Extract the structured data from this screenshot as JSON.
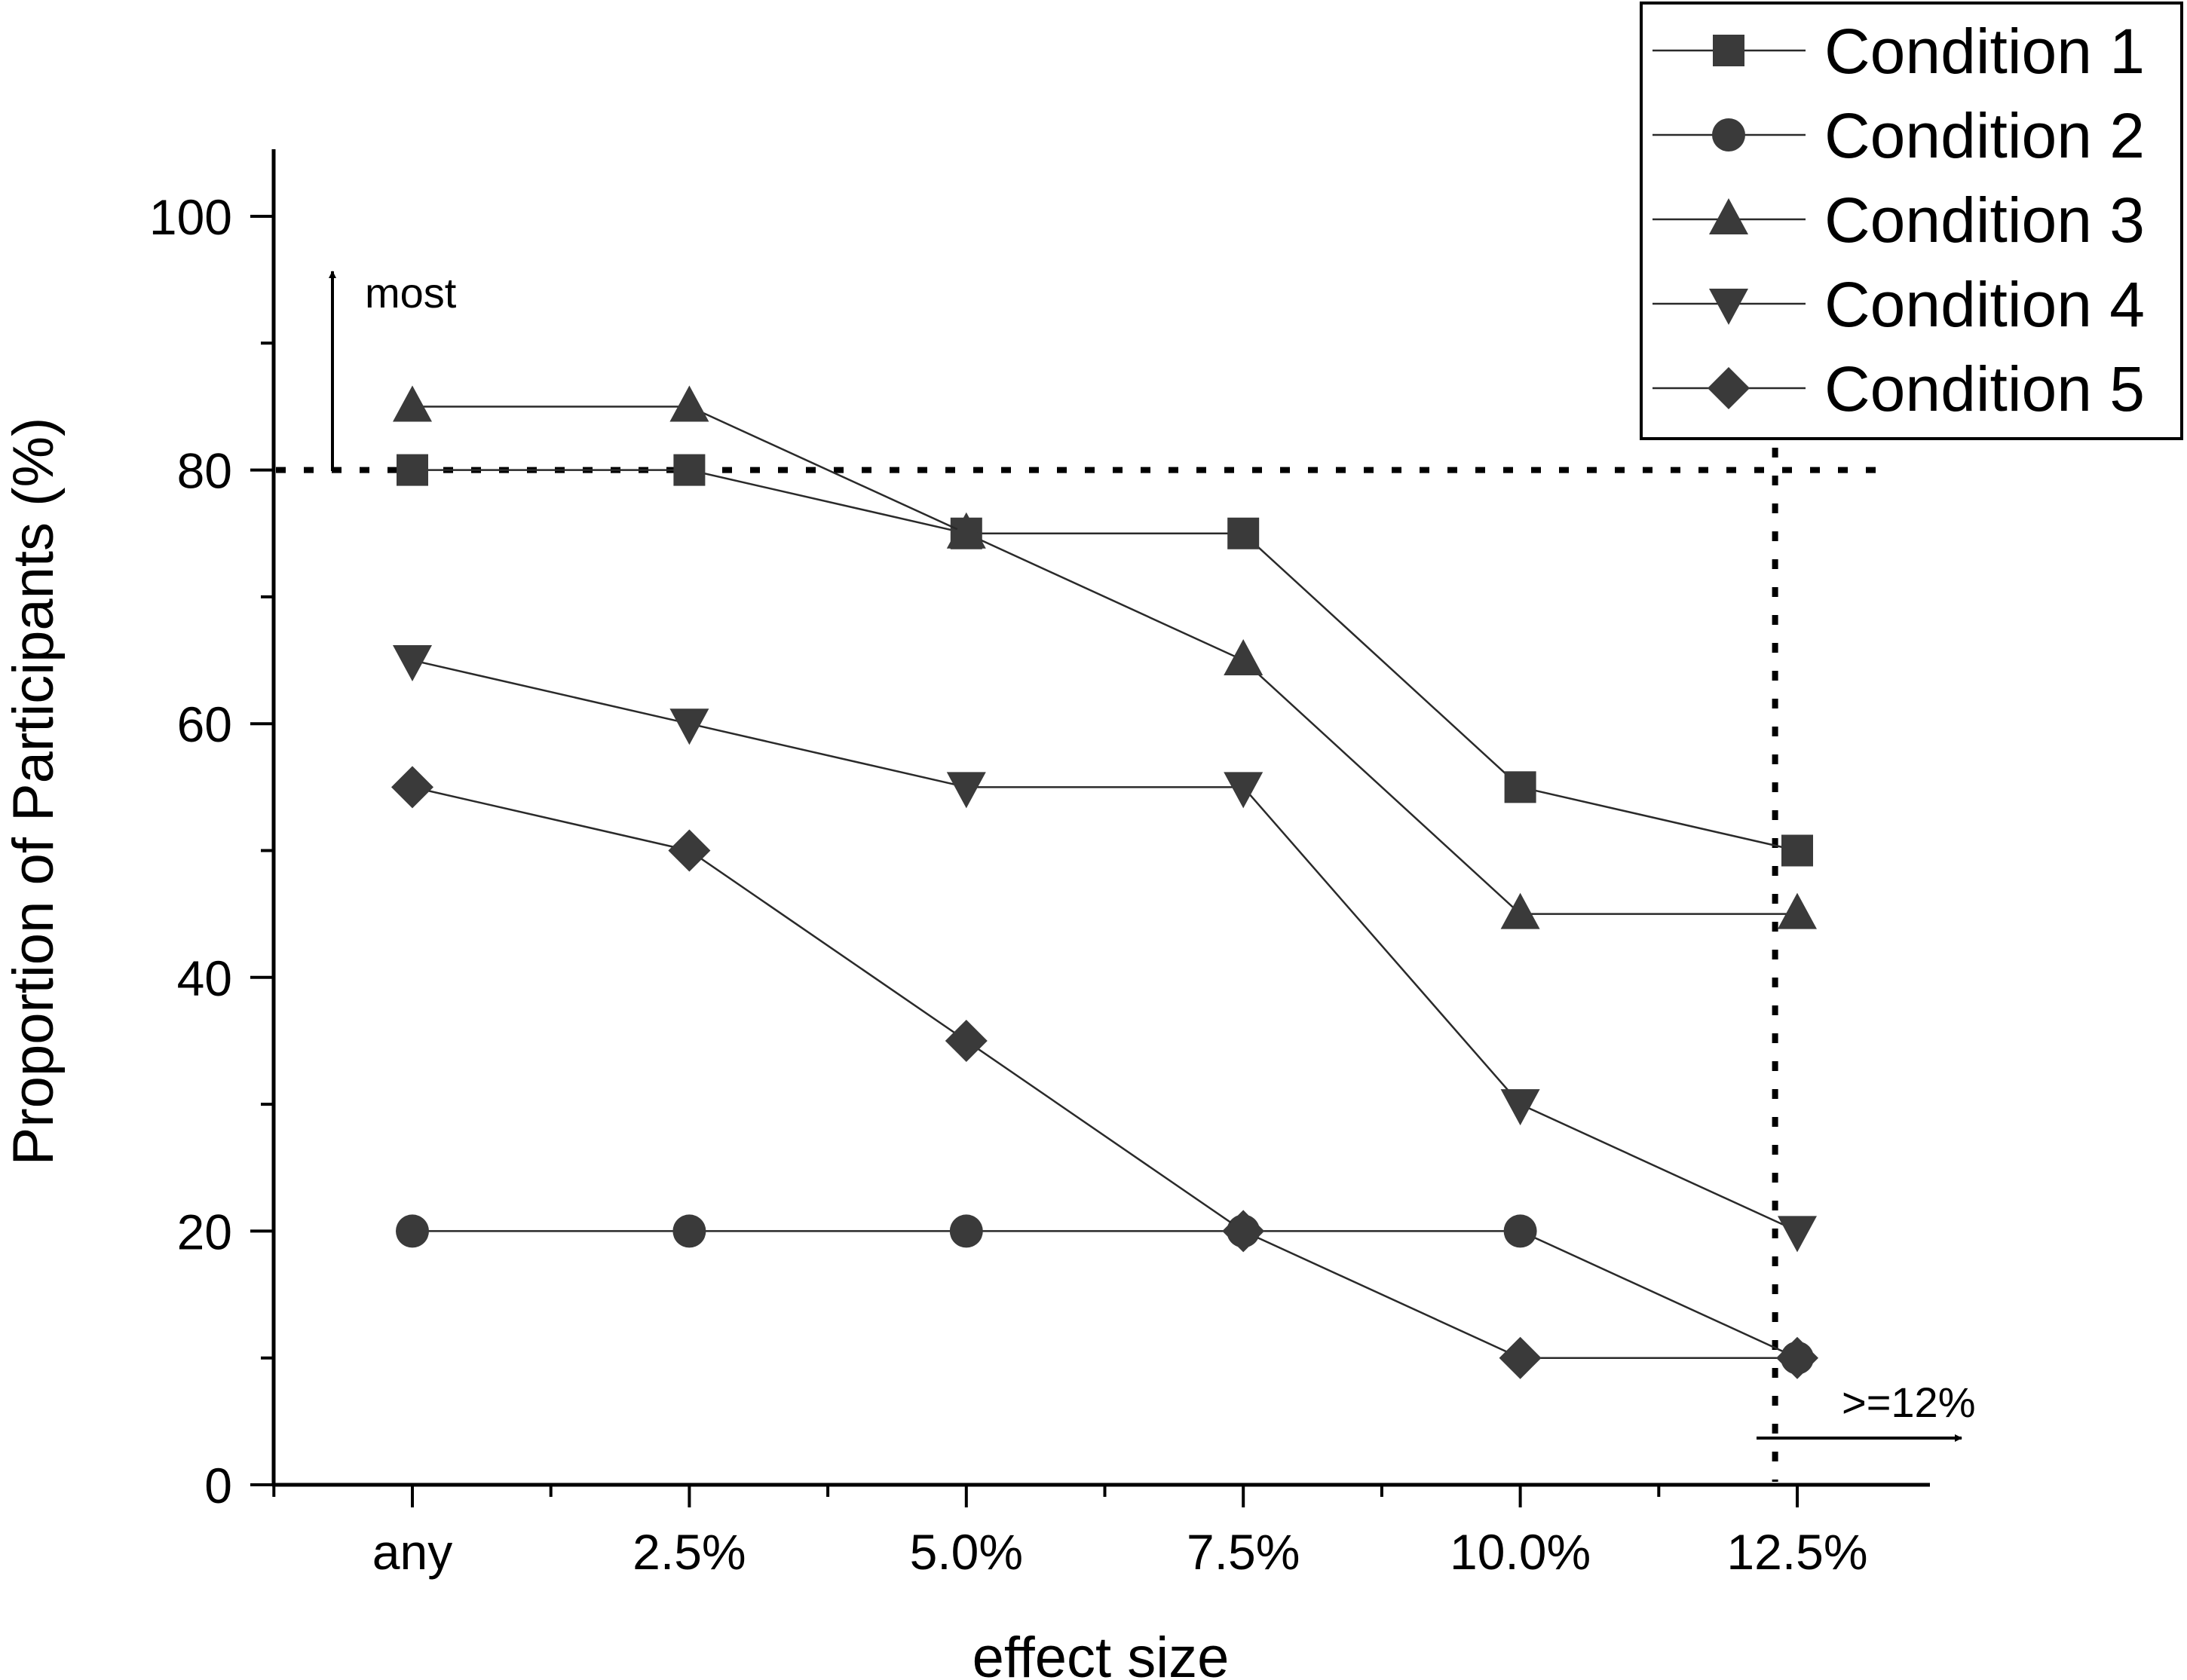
{
  "chart_data": {
    "type": "line",
    "categories": [
      "any",
      "2.5%",
      "5.0%",
      "7.5%",
      "10.0%",
      "12.5%"
    ],
    "xlabel": "effect size",
    "ylabel": "Proportion of Participants (%)",
    "ylim": [
      0,
      105
    ],
    "y_ticks": [
      0,
      20,
      40,
      60,
      80,
      100
    ],
    "grid": false,
    "legend_position": "top-right",
    "series": [
      {
        "name": "Condition 1",
        "marker": "square",
        "values": [
          80,
          80,
          75,
          75,
          55,
          50
        ]
      },
      {
        "name": "Condition 2",
        "marker": "circle",
        "values": [
          20,
          20,
          20,
          20,
          20,
          10
        ]
      },
      {
        "name": "Condition 3",
        "marker": "triangle-up",
        "values": [
          85,
          85,
          75,
          65,
          45,
          45
        ]
      },
      {
        "name": "Condition 4",
        "marker": "triangle-down",
        "values": [
          65,
          60,
          55,
          55,
          30,
          20
        ]
      },
      {
        "name": "Condition 5",
        "marker": "diamond",
        "values": [
          55,
          50,
          35,
          20,
          10,
          10
        ]
      }
    ],
    "reference_lines": {
      "horizontal_value": 80,
      "vertical_category_position": 5.92
    },
    "annotations": [
      {
        "text": "most",
        "arrow": "up"
      },
      {
        "text": ">=12%",
        "arrow": "right"
      }
    ]
  },
  "colors": {
    "marker": "#3a3a3a",
    "line": "#2a2a2a",
    "axis": "#000000"
  }
}
